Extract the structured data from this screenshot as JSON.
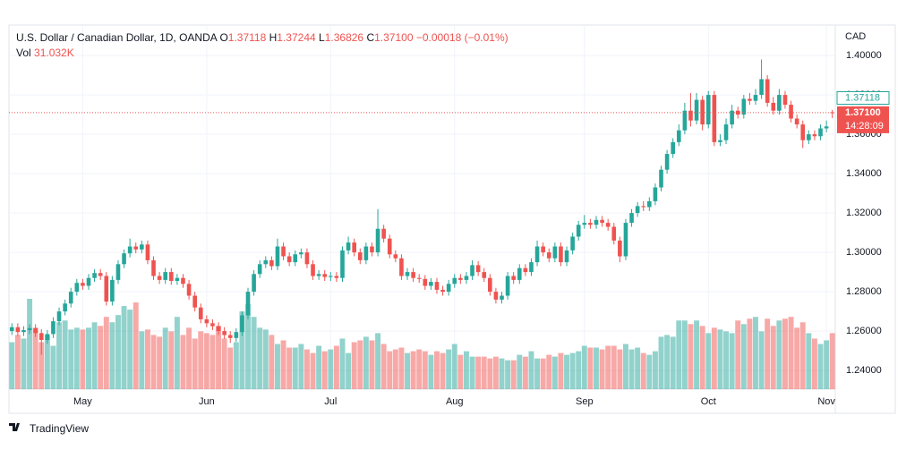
{
  "chart_data": {
    "type": "candlestick",
    "title": "U.S. Dollar / Canadian Dollar, 1D, OANDA",
    "legend": {
      "o_key": "O",
      "o": "1.37118",
      "h_key": "H",
      "h": "1.37244",
      "l_key": "L",
      "l": "1.36826",
      "c_key": "C",
      "c": "1.37100",
      "change": "−0.00018 (−0.01%)",
      "vol_key": "Vol",
      "vol": "31.032K"
    },
    "axis_label": "CAD",
    "up_color": "#26a69a",
    "down_color": "#ef5350",
    "ylim": [
      1.2305,
      1.4155
    ],
    "yticks": [
      {
        "value": 1.24,
        "label": "1.24000"
      },
      {
        "value": 1.26,
        "label": "1.26000"
      },
      {
        "value": 1.28,
        "label": "1.28000"
      },
      {
        "value": 1.3,
        "label": "1.30000"
      },
      {
        "value": 1.32,
        "label": "1.32000"
      },
      {
        "value": 1.34,
        "label": "1.34000"
      },
      {
        "value": 1.36,
        "label": "1.36000"
      },
      {
        "value": 1.38,
        "label": "1.38000"
      },
      {
        "value": 1.4,
        "label": "1.40000"
      }
    ],
    "open_tag": {
      "value": 1.37118,
      "label": "1.37118"
    },
    "last_price": {
      "value": 1.371,
      "label": "1.37100"
    },
    "countdown": "14:28:09",
    "brand": "TradingView",
    "categories": [
      null,
      null,
      null,
      null,
      null,
      null,
      null,
      null,
      null,
      null,
      null,
      null,
      "May",
      null,
      null,
      null,
      null,
      null,
      null,
      null,
      null,
      null,
      null,
      null,
      null,
      null,
      null,
      null,
      null,
      null,
      null,
      null,
      null,
      "Jun",
      null,
      null,
      null,
      null,
      null,
      null,
      null,
      null,
      null,
      null,
      null,
      null,
      null,
      null,
      null,
      null,
      null,
      null,
      null,
      null,
      "Jul",
      null,
      null,
      null,
      null,
      null,
      null,
      null,
      null,
      null,
      null,
      null,
      null,
      null,
      null,
      null,
      null,
      null,
      null,
      null,
      null,
      "Aug",
      null,
      null,
      null,
      null,
      null,
      null,
      null,
      null,
      null,
      null,
      null,
      null,
      null,
      null,
      null,
      null,
      null,
      null,
      null,
      null,
      null,
      "Sep",
      null,
      null,
      null,
      null,
      null,
      null,
      null,
      null,
      null,
      null,
      null,
      null,
      null,
      null,
      null,
      null,
      null,
      null,
      null,
      null,
      "Oct",
      null,
      null,
      null,
      null,
      null,
      null,
      null,
      null,
      null,
      null,
      null,
      null,
      null,
      null,
      null,
      null,
      null,
      null,
      null,
      "Nov",
      null
    ],
    "open": [
      1.26,
      1.262,
      1.2595,
      1.2605,
      1.2615,
      1.259,
      1.2555,
      1.2585,
      1.265,
      1.27,
      1.274,
      1.28,
      1.2845,
      1.283,
      1.287,
      1.2895,
      1.288,
      1.275,
      1.286,
      1.294,
      1.2995,
      1.303,
      1.3015,
      1.304,
      1.296,
      1.288,
      1.286,
      1.29,
      1.2855,
      1.287,
      1.284,
      1.278,
      1.272,
      1.266,
      1.264,
      1.2625,
      1.26,
      1.258,
      1.2565,
      1.2595,
      1.268,
      1.28,
      1.289,
      1.294,
      1.296,
      1.293,
      1.303,
      1.298,
      1.295,
      1.299,
      1.3,
      1.294,
      1.288,
      1.289,
      1.2875,
      1.288,
      1.287,
      1.301,
      1.305,
      1.3,
      1.296,
      1.303,
      1.3,
      1.312,
      1.307,
      1.299,
      1.297,
      1.288,
      1.29,
      1.287,
      1.2865,
      1.283,
      1.285,
      1.281,
      1.28,
      1.284,
      1.287,
      1.286,
      1.288,
      1.2935,
      1.29,
      1.287,
      1.28,
      1.276,
      1.278,
      1.288,
      1.286,
      1.292,
      1.29,
      1.295,
      1.303,
      1.3,
      1.297,
      1.303,
      1.295,
      1.301,
      1.308,
      1.314,
      1.315,
      1.314,
      1.3165,
      1.315,
      1.313,
      1.306,
      1.298,
      1.315,
      1.32,
      1.3235,
      1.323,
      1.326,
      1.333,
      1.342,
      1.35,
      1.356,
      1.362,
      1.372,
      1.367,
      1.3775,
      1.365,
      1.38,
      1.356,
      1.357,
      1.365,
      1.372,
      1.37,
      1.378,
      1.377,
      1.38,
      1.388,
      1.376,
      1.372,
      1.38,
      1.375,
      1.368,
      1.365,
      1.357,
      1.36,
      1.359,
      1.363,
      1.37118
    ],
    "high": [
      1.264,
      1.264,
      1.2625,
      1.2635,
      1.2635,
      1.261,
      1.2605,
      1.267,
      1.272,
      1.276,
      1.282,
      1.2865,
      1.2865,
      1.289,
      1.2915,
      1.2915,
      1.29,
      1.288,
      1.296,
      1.3015,
      1.307,
      1.305,
      1.306,
      1.306,
      1.298,
      1.29,
      1.292,
      1.292,
      1.289,
      1.289,
      1.286,
      1.28,
      1.274,
      1.268,
      1.266,
      1.2645,
      1.262,
      1.26,
      1.2615,
      1.27,
      1.282,
      1.291,
      1.296,
      1.298,
      1.298,
      1.307,
      1.305,
      1.3,
      1.301,
      1.302,
      1.302,
      1.296,
      1.291,
      1.291,
      1.29,
      1.29,
      1.303,
      1.308,
      1.307,
      1.302,
      1.305,
      1.305,
      1.322,
      1.314,
      1.309,
      1.301,
      1.299,
      1.292,
      1.292,
      1.289,
      1.2885,
      1.287,
      1.287,
      1.283,
      1.286,
      1.289,
      1.289,
      1.29,
      1.296,
      1.2955,
      1.292,
      1.289,
      1.282,
      1.28,
      1.29,
      1.29,
      1.294,
      1.294,
      1.297,
      1.306,
      1.305,
      1.302,
      1.305,
      1.305,
      1.303,
      1.31,
      1.316,
      1.319,
      1.317,
      1.3185,
      1.3185,
      1.317,
      1.315,
      1.308,
      1.317,
      1.322,
      1.3255,
      1.326,
      1.328,
      1.335,
      1.344,
      1.352,
      1.358,
      1.365,
      1.376,
      1.381,
      1.381,
      1.3795,
      1.382,
      1.382,
      1.36,
      1.368,
      1.375,
      1.374,
      1.38,
      1.381,
      1.383,
      1.398,
      1.39,
      1.379,
      1.383,
      1.382,
      1.377,
      1.37,
      1.367,
      1.362,
      1.362,
      1.365,
      1.367,
      1.37244
    ],
    "low": [
      1.258,
      1.2575,
      1.2575,
      1.2585,
      1.257,
      1.248,
      1.2535,
      1.2565,
      1.263,
      1.268,
      1.272,
      1.278,
      1.281,
      1.281,
      1.285,
      1.286,
      1.273,
      1.273,
      1.284,
      1.292,
      1.2975,
      1.2995,
      1.2995,
      1.294,
      1.286,
      1.284,
      1.284,
      1.2835,
      1.2835,
      1.282,
      1.276,
      1.27,
      1.264,
      1.262,
      1.2605,
      1.258,
      1.256,
      1.254,
      1.2545,
      1.2575,
      1.266,
      1.278,
      1.287,
      1.292,
      1.291,
      1.291,
      1.296,
      1.293,
      1.293,
      1.297,
      1.292,
      1.286,
      1.286,
      1.2855,
      1.2855,
      1.285,
      1.285,
      1.299,
      1.298,
      1.294,
      1.294,
      1.298,
      1.298,
      1.305,
      1.297,
      1.295,
      1.286,
      1.286,
      1.285,
      1.2845,
      1.281,
      1.281,
      1.279,
      1.278,
      1.278,
      1.282,
      1.284,
      1.284,
      1.286,
      1.288,
      1.285,
      1.278,
      1.274,
      1.274,
      1.276,
      1.284,
      1.284,
      1.288,
      1.288,
      1.293,
      1.298,
      1.295,
      1.295,
      1.293,
      1.293,
      1.299,
      1.306,
      1.312,
      1.312,
      1.312,
      1.313,
      1.311,
      1.304,
      1.295,
      1.296,
      1.313,
      1.318,
      1.321,
      1.321,
      1.324,
      1.331,
      1.34,
      1.348,
      1.354,
      1.36,
      1.364,
      1.365,
      1.362,
      1.363,
      1.354,
      1.354,
      1.355,
      1.363,
      1.368,
      1.368,
      1.375,
      1.375,
      1.378,
      1.374,
      1.37,
      1.37,
      1.373,
      1.366,
      1.363,
      1.353,
      1.355,
      1.357,
      1.357,
      1.361,
      1.36826
    ],
    "close": [
      1.262,
      1.2595,
      1.2605,
      1.2615,
      1.259,
      1.2555,
      1.2585,
      1.265,
      1.27,
      1.274,
      1.28,
      1.2845,
      1.283,
      1.287,
      1.2895,
      1.288,
      1.275,
      1.286,
      1.294,
      1.2995,
      1.303,
      1.3015,
      1.304,
      1.296,
      1.288,
      1.286,
      1.29,
      1.2855,
      1.287,
      1.284,
      1.278,
      1.272,
      1.266,
      1.264,
      1.2625,
      1.26,
      1.258,
      1.2565,
      1.2595,
      1.268,
      1.28,
      1.289,
      1.294,
      1.296,
      1.293,
      1.303,
      1.298,
      1.295,
      1.299,
      1.3,
      1.294,
      1.288,
      1.289,
      1.2875,
      1.288,
      1.287,
      1.301,
      1.305,
      1.3,
      1.296,
      1.303,
      1.3,
      1.312,
      1.307,
      1.299,
      1.297,
      1.288,
      1.29,
      1.287,
      1.2865,
      1.283,
      1.285,
      1.281,
      1.28,
      1.284,
      1.287,
      1.286,
      1.288,
      1.2935,
      1.29,
      1.287,
      1.28,
      1.276,
      1.278,
      1.288,
      1.286,
      1.292,
      1.29,
      1.295,
      1.303,
      1.3,
      1.297,
      1.303,
      1.295,
      1.301,
      1.308,
      1.314,
      1.315,
      1.314,
      1.3165,
      1.315,
      1.313,
      1.306,
      1.298,
      1.315,
      1.32,
      1.3235,
      1.323,
      1.326,
      1.333,
      1.342,
      1.35,
      1.356,
      1.362,
      1.372,
      1.367,
      1.3775,
      1.365,
      1.38,
      1.356,
      1.357,
      1.365,
      1.372,
      1.37,
      1.378,
      1.377,
      1.38,
      1.388,
      1.376,
      1.372,
      1.38,
      1.375,
      1.368,
      1.365,
      1.357,
      1.36,
      1.359,
      1.363,
      1.364,
      1.371
    ],
    "volume": [
      26000,
      30000,
      28000,
      50000,
      34000,
      26000,
      30000,
      24000,
      37000,
      38000,
      33000,
      34000,
      33000,
      34000,
      37000,
      35000,
      40000,
      37000,
      41000,
      46000,
      44000,
      48000,
      32000,
      33000,
      30000,
      29000,
      34000,
      32000,
      40000,
      30000,
      34000,
      28000,
      32000,
      31000,
      30000,
      35000,
      28000,
      23000,
      26000,
      43000,
      47000,
      40000,
      34000,
      33000,
      30000,
      25000,
      27000,
      23000,
      23000,
      25000,
      22000,
      20000,
      24000,
      21000,
      22000,
      24000,
      28000,
      20000,
      26000,
      27000,
      29000,
      27000,
      31000,
      25000,
      21000,
      22000,
      23000,
      20000,
      21000,
      22000,
      21000,
      19000,
      21000,
      20000,
      22000,
      25000,
      19000,
      21000,
      18000,
      18000,
      18000,
      17000,
      18000,
      17000,
      16000,
      16000,
      19000,
      18000,
      21000,
      17000,
      17000,
      19000,
      18000,
      20000,
      19000,
      20000,
      21000,
      24000,
      23000,
      23000,
      22000,
      24000,
      24000,
      22000,
      25000,
      22000,
      23000,
      20000,
      19000,
      21000,
      29000,
      30000,
      29000,
      38000,
      38000,
      36000,
      38000,
      35000,
      31000,
      34000,
      33000,
      32000,
      31000,
      38000,
      36000,
      39000,
      40000,
      32000,
      39000,
      35000,
      38000,
      39000,
      40000,
      34000,
      37000,
      31000,
      28000,
      25000,
      27000,
      31032
    ]
  }
}
